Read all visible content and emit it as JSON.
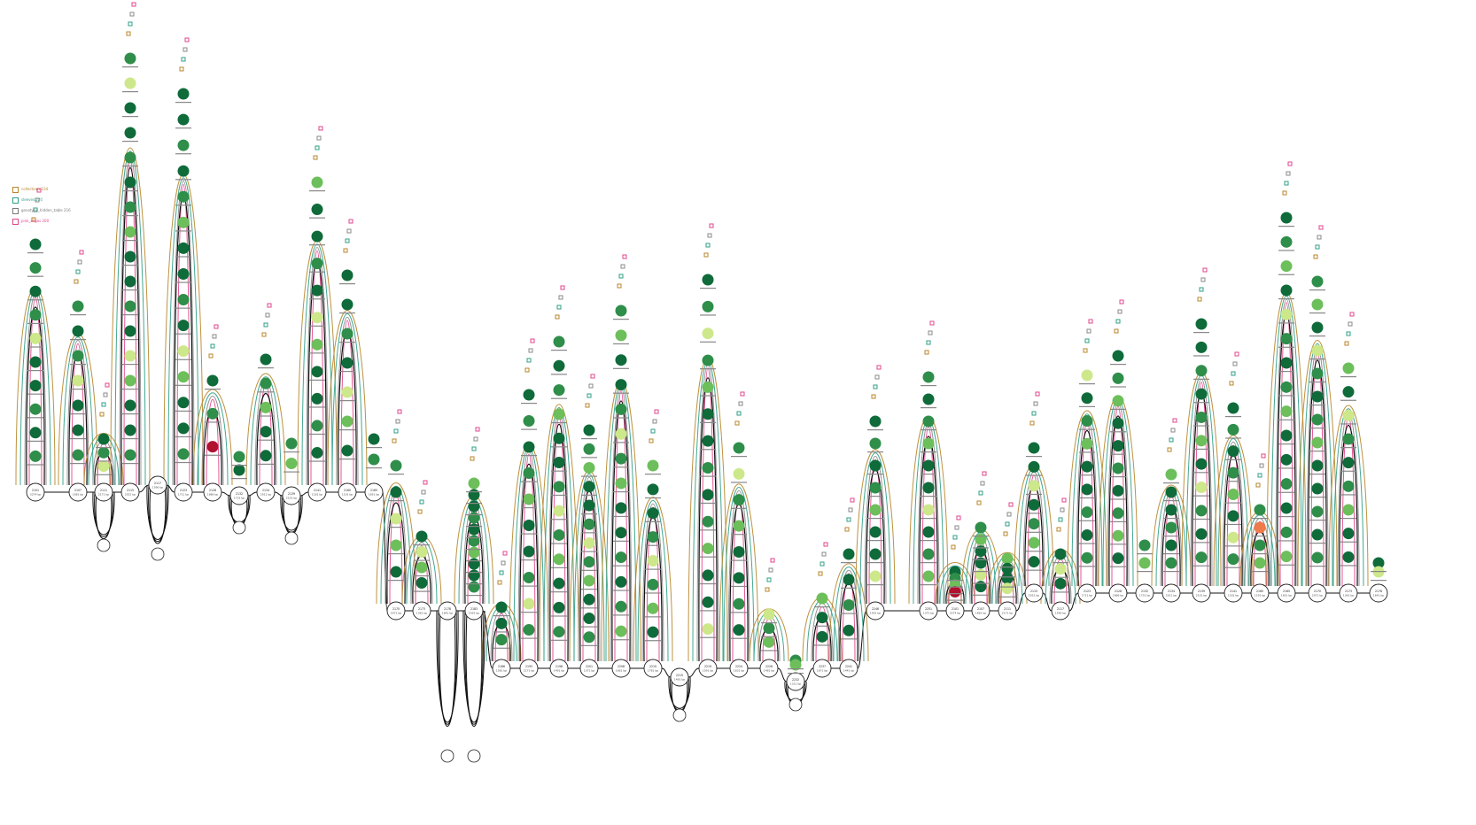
{
  "legend": [
    {
      "label": "collections  234",
      "color": "#b8862b"
    },
    {
      "label": "sleeves  220",
      "color": "#2f9f86"
    },
    {
      "label": "genotype_hidden_table  216",
      "color": "#7a7a7a"
    },
    {
      "label": "pink_oligos  200",
      "color": "#e2458c"
    }
  ],
  "colors": {
    "edge_gold": "#b8862b",
    "edge_teal": "#2f9f86",
    "edge_gray": "#8a8a8a",
    "edge_pink": "#e2458c",
    "edge_black": "#111111",
    "node_dark": "#0f6b3a",
    "node_mid": "#2e8e4a",
    "node_light": "#6cbf5a",
    "node_pale": "#cde88a",
    "node_red": "#b0122f",
    "node_orange": "#ef7a4a"
  },
  "backbone": [
    {
      "label": "2101",
      "sub": "3274 bp"
    },
    {
      "label": "2107",
      "sub": "1681 bp"
    },
    {
      "label": "2111",
      "sub": "2171 bp"
    },
    {
      "label": "2115",
      "sub": "2021 bp"
    },
    {
      "label": "2117",
      "sub": "1590 bp"
    },
    {
      "label": "2123",
      "sub": "1711 bp"
    },
    {
      "label": "2128",
      "sub": "1866 bp"
    },
    {
      "label": "2132",
      "sub": "1731 bp"
    },
    {
      "label": "2134",
      "sub": "2011 bp"
    },
    {
      "label": "2139",
      "sub": "2101 bp"
    },
    {
      "label": "2141",
      "sub": "1181 bp"
    },
    {
      "label": "2160",
      "sub": "1191 bp"
    },
    {
      "label": "2165",
      "sub": "1651 bp"
    },
    {
      "label": "2170",
      "sub": "2071 bp"
    },
    {
      "label": "2173",
      "sub": "1361 bp"
    },
    {
      "label": "2178",
      "sub": "1641 bp"
    },
    {
      "label": "2183",
      "sub": "1591 bp"
    },
    {
      "label": "2186",
      "sub": "1581 bp"
    },
    {
      "label": "2193",
      "sub": "2171 bp"
    },
    {
      "label": "2198",
      "sub": "1491 bp"
    },
    {
      "label": "2201",
      "sub": "1371 bp"
    },
    {
      "label": "2208",
      "sub": "1661 bp"
    },
    {
      "label": "2210",
      "sub": "1781 bp"
    },
    {
      "label": "2215",
      "sub": "1491 bp"
    },
    {
      "label": "2219",
      "sub": "1591 bp"
    },
    {
      "label": "2224",
      "sub": "1631 bp"
    },
    {
      "label": "2228",
      "sub": "1481 bp"
    },
    {
      "label": "2232",
      "sub": "1311 bp"
    },
    {
      "label": "2237",
      "sub": "1671 bp"
    },
    {
      "label": "2241",
      "sub": "1441 bp"
    },
    {
      "label": "2246",
      "sub": "1591 bp"
    },
    {
      "label": "2251",
      "sub": "1371 bp"
    }
  ]
}
